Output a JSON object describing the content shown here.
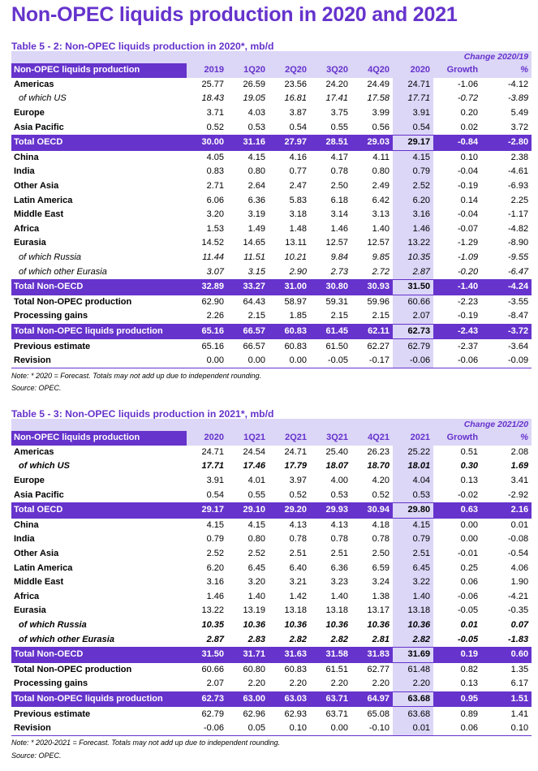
{
  "page": {
    "title": "Non-OPEC liquids production in 2020 and 2021"
  },
  "tables": [
    {
      "title": "Table 5 - 2: Non-OPEC liquids production in 2020*, mb/d",
      "change_header": "Change 2020/19",
      "columns": [
        "Non-OPEC liquids production",
        "2019",
        "1Q20",
        "2Q20",
        "3Q20",
        "4Q20",
        "2020",
        "Growth",
        "%"
      ],
      "rows": [
        {
          "label": "Americas",
          "style": "bold",
          "values": [
            "25.77",
            "26.59",
            "23.56",
            "24.20",
            "24.49",
            "24.71",
            "-1.06",
            "-4.12"
          ]
        },
        {
          "label": "of which US",
          "style": "italic",
          "values": [
            "18.43",
            "19.05",
            "16.81",
            "17.41",
            "17.58",
            "17.71",
            "-0.72",
            "-3.89"
          ]
        },
        {
          "label": "Europe",
          "style": "bold",
          "values": [
            "3.71",
            "4.03",
            "3.87",
            "3.75",
            "3.99",
            "3.91",
            "0.20",
            "5.49"
          ]
        },
        {
          "label": "Asia Pacific",
          "style": "bold",
          "values": [
            "0.52",
            "0.53",
            "0.54",
            "0.55",
            "0.56",
            "0.54",
            "0.02",
            "3.72"
          ]
        },
        {
          "label": "Total OECD",
          "style": "total",
          "values": [
            "30.00",
            "31.16",
            "27.97",
            "28.51",
            "29.03",
            "29.17",
            "-0.84",
            "-2.80"
          ]
        },
        {
          "label": "China",
          "style": "bold",
          "values": [
            "4.05",
            "4.15",
            "4.16",
            "4.17",
            "4.11",
            "4.15",
            "0.10",
            "2.38"
          ]
        },
        {
          "label": "India",
          "style": "bold",
          "values": [
            "0.83",
            "0.80",
            "0.77",
            "0.78",
            "0.80",
            "0.79",
            "-0.04",
            "-4.61"
          ]
        },
        {
          "label": "Other Asia",
          "style": "bold",
          "values": [
            "2.71",
            "2.64",
            "2.47",
            "2.50",
            "2.49",
            "2.52",
            "-0.19",
            "-6.93"
          ]
        },
        {
          "label": "Latin America",
          "style": "bold",
          "values": [
            "6.06",
            "6.36",
            "5.83",
            "6.18",
            "6.42",
            "6.20",
            "0.14",
            "2.25"
          ]
        },
        {
          "label": "Middle East",
          "style": "bold",
          "values": [
            "3.20",
            "3.19",
            "3.18",
            "3.14",
            "3.13",
            "3.16",
            "-0.04",
            "-1.17"
          ]
        },
        {
          "label": "Africa",
          "style": "bold",
          "values": [
            "1.53",
            "1.49",
            "1.48",
            "1.46",
            "1.40",
            "1.46",
            "-0.07",
            "-4.82"
          ]
        },
        {
          "label": "Eurasia",
          "style": "bold",
          "values": [
            "14.52",
            "14.65",
            "13.11",
            "12.57",
            "12.57",
            "13.22",
            "-1.29",
            "-8.90"
          ]
        },
        {
          "label": "of which Russia",
          "style": "italic",
          "values": [
            "11.44",
            "11.51",
            "10.21",
            "9.84",
            "9.85",
            "10.35",
            "-1.09",
            "-9.55"
          ]
        },
        {
          "label": "of which other Eurasia",
          "style": "italic",
          "values": [
            "3.07",
            "3.15",
            "2.90",
            "2.73",
            "2.72",
            "2.87",
            "-0.20",
            "-6.47"
          ]
        },
        {
          "label": "Total Non-OECD",
          "style": "total",
          "values": [
            "32.89",
            "33.27",
            "31.00",
            "30.80",
            "30.93",
            "31.50",
            "-1.40",
            "-4.24"
          ]
        },
        {
          "label": "Total Non-OPEC production",
          "style": "bold",
          "values": [
            "62.90",
            "64.43",
            "58.97",
            "59.31",
            "59.96",
            "60.66",
            "-2.23",
            "-3.55"
          ]
        },
        {
          "label": "Processing gains",
          "style": "bold",
          "values": [
            "2.26",
            "2.15",
            "1.85",
            "2.15",
            "2.15",
            "2.07",
            "-0.19",
            "-8.47"
          ]
        },
        {
          "label": "Total Non-OPEC liquids production",
          "style": "total",
          "values": [
            "65.16",
            "66.57",
            "60.83",
            "61.45",
            "62.11",
            "62.73",
            "-2.43",
            "-3.72"
          ]
        },
        {
          "label": "Previous estimate",
          "style": "bold",
          "values": [
            "65.16",
            "66.57",
            "60.83",
            "61.50",
            "62.27",
            "62.79",
            "-2.37",
            "-3.64"
          ]
        },
        {
          "label": "Revision",
          "style": "bold",
          "values": [
            "0.00",
            "0.00",
            "0.00",
            "-0.05",
            "-0.17",
            "-0.06",
            "-0.06",
            "-0.09"
          ]
        }
      ],
      "note": "Note: * 2020 = Forecast. Totals may not add up due to independent rounding.",
      "source": "Source: OPEC."
    },
    {
      "title": "Table 5 - 3: Non-OPEC liquids production in 2021*, mb/d",
      "change_header": "Change 2021/20",
      "columns": [
        "Non-OPEC liquids production",
        "2020",
        "1Q21",
        "2Q21",
        "3Q21",
        "4Q21",
        "2021",
        "Growth",
        "%"
      ],
      "rows": [
        {
          "label": "Americas",
          "style": "bold",
          "values": [
            "24.71",
            "24.54",
            "24.71",
            "25.40",
            "26.23",
            "25.22",
            "0.51",
            "2.08"
          ]
        },
        {
          "label": "of which US",
          "style": "bolditalic",
          "values": [
            "17.71",
            "17.46",
            "17.79",
            "18.07",
            "18.70",
            "18.01",
            "0.30",
            "1.69"
          ]
        },
        {
          "label": "Europe",
          "style": "bold",
          "values": [
            "3.91",
            "4.01",
            "3.97",
            "4.00",
            "4.20",
            "4.04",
            "0.13",
            "3.41"
          ]
        },
        {
          "label": "Asia Pacific",
          "style": "bold",
          "values": [
            "0.54",
            "0.55",
            "0.52",
            "0.53",
            "0.52",
            "0.53",
            "-0.02",
            "-2.92"
          ]
        },
        {
          "label": "Total OECD",
          "style": "total",
          "values": [
            "29.17",
            "29.10",
            "29.20",
            "29.93",
            "30.94",
            "29.80",
            "0.63",
            "2.16"
          ]
        },
        {
          "label": "China",
          "style": "bold",
          "values": [
            "4.15",
            "4.15",
            "4.13",
            "4.13",
            "4.18",
            "4.15",
            "0.00",
            "0.01"
          ]
        },
        {
          "label": "India",
          "style": "bold",
          "values": [
            "0.79",
            "0.80",
            "0.78",
            "0.78",
            "0.78",
            "0.79",
            "0.00",
            "-0.08"
          ]
        },
        {
          "label": "Other Asia",
          "style": "bold",
          "values": [
            "2.52",
            "2.52",
            "2.51",
            "2.51",
            "2.50",
            "2.51",
            "-0.01",
            "-0.54"
          ]
        },
        {
          "label": "Latin America",
          "style": "bold",
          "values": [
            "6.20",
            "6.45",
            "6.40",
            "6.36",
            "6.59",
            "6.45",
            "0.25",
            "4.06"
          ]
        },
        {
          "label": "Middle East",
          "style": "bold",
          "values": [
            "3.16",
            "3.20",
            "3.21",
            "3.23",
            "3.24",
            "3.22",
            "0.06",
            "1.90"
          ]
        },
        {
          "label": "Africa",
          "style": "bold",
          "values": [
            "1.46",
            "1.40",
            "1.42",
            "1.40",
            "1.38",
            "1.40",
            "-0.06",
            "-4.21"
          ]
        },
        {
          "label": "Eurasia",
          "style": "bold",
          "values": [
            "13.22",
            "13.19",
            "13.18",
            "13.18",
            "13.17",
            "13.18",
            "-0.05",
            "-0.35"
          ]
        },
        {
          "label": "of which Russia",
          "style": "bolditalic",
          "values": [
            "10.35",
            "10.36",
            "10.36",
            "10.36",
            "10.36",
            "10.36",
            "0.01",
            "0.07"
          ]
        },
        {
          "label": "of which other Eurasia",
          "style": "bolditalic",
          "values": [
            "2.87",
            "2.83",
            "2.82",
            "2.82",
            "2.81",
            "2.82",
            "-0.05",
            "-1.83"
          ]
        },
        {
          "label": "Total Non-OECD",
          "style": "total",
          "values": [
            "31.50",
            "31.71",
            "31.63",
            "31.58",
            "31.83",
            "31.69",
            "0.19",
            "0.60"
          ]
        },
        {
          "label": "Total Non-OPEC production",
          "style": "bold",
          "values": [
            "60.66",
            "60.80",
            "60.83",
            "61.51",
            "62.77",
            "61.48",
            "0.82",
            "1.35"
          ]
        },
        {
          "label": "Processing gains",
          "style": "bold",
          "values": [
            "2.07",
            "2.20",
            "2.20",
            "2.20",
            "2.20",
            "2.20",
            "0.13",
            "6.17"
          ]
        },
        {
          "label": "Total Non-OPEC liquids production",
          "style": "total",
          "values": [
            "62.73",
            "63.00",
            "63.03",
            "63.71",
            "64.97",
            "63.68",
            "0.95",
            "1.51"
          ]
        },
        {
          "label": "Previous estimate",
          "style": "bold",
          "values": [
            "62.79",
            "62.96",
            "62.93",
            "63.71",
            "65.08",
            "63.68",
            "0.89",
            "1.41"
          ]
        },
        {
          "label": "Revision",
          "style": "bold",
          "values": [
            "-0.06",
            "0.05",
            "0.10",
            "0.00",
            "-0.10",
            "0.01",
            "0.06",
            "0.10"
          ]
        }
      ],
      "note": "Note: * 2020-2021 = Forecast. Totals may not add up due to independent rounding.",
      "source": "Source: OPEC."
    }
  ]
}
